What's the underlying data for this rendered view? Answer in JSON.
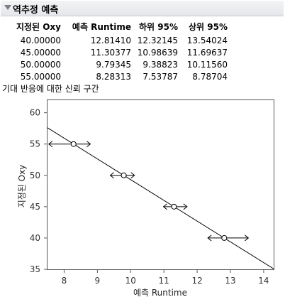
{
  "header": {
    "title": "역추정 예측"
  },
  "table": {
    "columns": [
      "지정된 Oxy",
      "예측 Runtime",
      "하위 95%",
      "상위 95%"
    ],
    "rows": [
      [
        "40.00000",
        "12.81410",
        "12.32145",
        "13.54024"
      ],
      [
        "45.00000",
        "11.30377",
        "10.98639",
        "11.69637"
      ],
      [
        "50.00000",
        "9.79345",
        "9.38823",
        "10.11560"
      ],
      [
        "55.00000",
        "8.28313",
        "7.53787",
        "8.78704"
      ]
    ]
  },
  "caption": "기대 반응에 대한 신뢰 구간",
  "chart_data": {
    "type": "scatter",
    "xlabel": "예측 Runtime",
    "ylabel": "지정된 Oxy",
    "xlim": [
      7.5,
      14.3
    ],
    "ylim": [
      35,
      62
    ],
    "xticks": [
      8,
      9,
      10,
      11,
      12,
      13,
      14
    ],
    "yticks": [
      35,
      40,
      45,
      50,
      55,
      60
    ],
    "points": [
      {
        "y": 40,
        "x": 12.8141,
        "lower": 12.32145,
        "upper": 13.54024
      },
      {
        "y": 45,
        "x": 11.30377,
        "lower": 10.98639,
        "upper": 11.69637
      },
      {
        "y": 50,
        "x": 9.79345,
        "lower": 9.38823,
        "upper": 10.1156
      },
      {
        "y": 55,
        "x": 8.28313,
        "lower": 7.53787,
        "upper": 8.78704
      }
    ],
    "fit_line": {
      "slope": -3.3106,
      "intercept": 82.4225
    },
    "grid": false
  }
}
